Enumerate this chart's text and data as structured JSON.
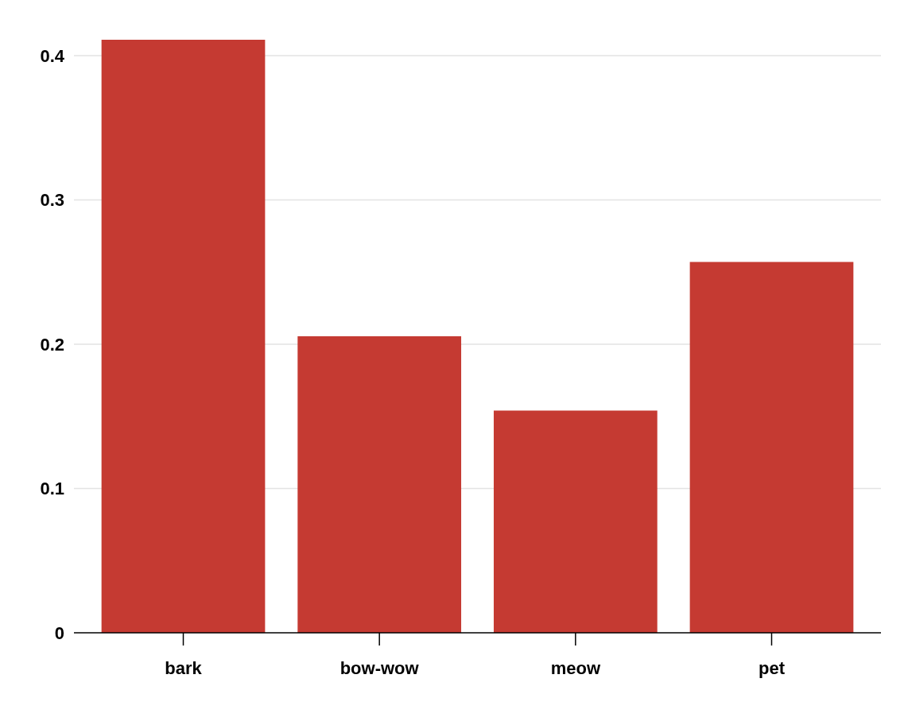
{
  "chart_data": {
    "type": "bar",
    "categories": [
      "bark",
      "bow-wow",
      "meow",
      "pet"
    ],
    "values": [
      0.411,
      0.2055,
      0.154,
      0.257
    ],
    "color": "#c53a32",
    "ylim": [
      0,
      0.411
    ],
    "yticks": [
      0,
      0.1,
      0.2,
      0.3,
      0.4
    ],
    "grid": "y"
  }
}
